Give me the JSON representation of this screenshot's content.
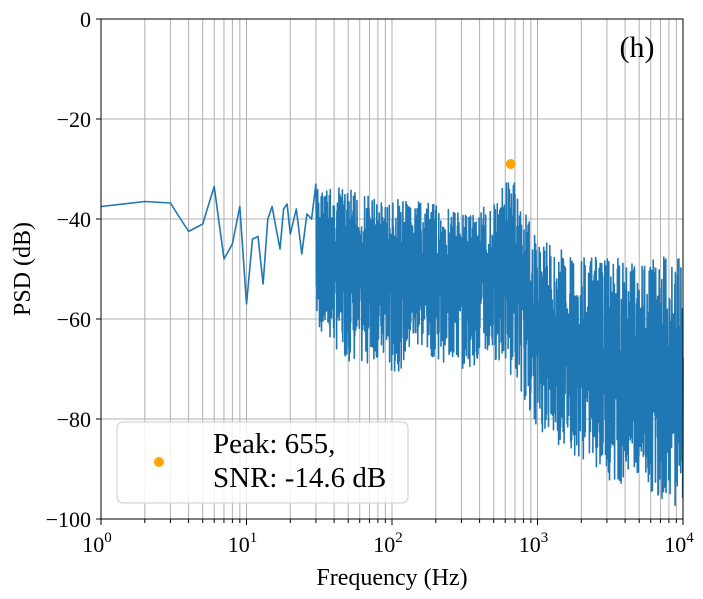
{
  "chart_data": {
    "type": "line",
    "panel_label": "(h)",
    "xlabel": "Frequency (Hz)",
    "ylabel": "PSD (dB)",
    "xscale": "log",
    "xlim": [
      1,
      10000
    ],
    "ylim": [
      -100,
      0
    ],
    "grid": true,
    "x_ticks": [
      {
        "value": 1,
        "base": "10",
        "exp": "0"
      },
      {
        "value": 10,
        "base": "10",
        "exp": "1"
      },
      {
        "value": 100,
        "base": "10",
        "exp": "2"
      },
      {
        "value": 1000,
        "base": "10",
        "exp": "3"
      },
      {
        "value": 10000,
        "base": "10",
        "exp": "4"
      }
    ],
    "y_ticks": [
      {
        "value": 0,
        "label": "0"
      },
      {
        "value": -20,
        "label": "−20"
      },
      {
        "value": -40,
        "label": "−40"
      },
      {
        "value": -60,
        "label": "−60"
      },
      {
        "value": -80,
        "label": "−80"
      },
      {
        "value": -100,
        "label": "−100"
      }
    ],
    "series": [
      {
        "color": "#1f77b4",
        "x": [
          1,
          2,
          3,
          4,
          5,
          6,
          7,
          8,
          9,
          10,
          11,
          12,
          13,
          14,
          15,
          16,
          17,
          18,
          19,
          20,
          22,
          24,
          26,
          28,
          30,
          32,
          35,
          38,
          40,
          45,
          50,
          55,
          60,
          70,
          80,
          90,
          100,
          120,
          150,
          180,
          200,
          250,
          300,
          350,
          400,
          450,
          500,
          550,
          600,
          655,
          700,
          750,
          800,
          900,
          1000,
          1200,
          1500,
          2000,
          2500,
          3000,
          4000,
          5000,
          6000,
          7000,
          8000,
          10000
        ],
        "y": [
          -37.5,
          -36.5,
          -36.8,
          -42.5,
          -41.0,
          -33.5,
          -48.0,
          -45.0,
          -37.5,
          -57.0,
          -44.0,
          -43.5,
          -53.0,
          -40.0,
          -37.5,
          -42.0,
          -46.0,
          -38.0,
          -37.0,
          -43.0,
          -38.0,
          -47.0,
          -39.0,
          -40.0,
          -33.0,
          -52.0,
          -40.0,
          -50.0,
          -41.0,
          -55.0,
          -39.0,
          -57.0,
          -42.0,
          -58.0,
          -40.0,
          -55.0,
          -44.0,
          -52.0,
          -48.0,
          -56.0,
          -45.0,
          -58.0,
          -42.0,
          -56.0,
          -40.0,
          -54.0,
          -37.0,
          -52.0,
          -35.0,
          -31.0,
          -40.0,
          -58.0,
          -43.0,
          -60.0,
          -47.0,
          -62.0,
          -50.0,
          -64.0,
          -52.0,
          -63.0,
          -54.0,
          -62.0,
          -52.0,
          -61.0,
          -49.0,
          -60.0
        ],
        "lower_envelope": {
          "x": [
            30,
            40,
            60,
            80,
            100,
            150,
            200,
            300,
            500,
            700,
            1000,
            1500,
            2000,
            3000,
            5000,
            10000
          ],
          "y": [
            -62,
            -66,
            -70,
            -68,
            -72,
            -66,
            -68,
            -70,
            -68,
            -72,
            -82,
            -86,
            -88,
            -92,
            -94,
            -98
          ]
        },
        "upper_envelope": {
          "x": [
            30,
            50,
            100,
            200,
            300,
            500,
            655,
            800,
            1000,
            1500,
            2000,
            3000,
            5000,
            10000
          ],
          "y": [
            -33,
            -34,
            -36,
            -37,
            -38,
            -37,
            -30,
            -38,
            -44,
            -46,
            -47,
            -48,
            -47,
            -47
          ]
        }
      }
    ],
    "peak": {
      "x": 655,
      "y": -29,
      "color": "#ffa500"
    },
    "legend": {
      "position": "lower-left",
      "lines": [
        "Peak: 655,",
        "SNR: -14.6 dB"
      ]
    }
  }
}
